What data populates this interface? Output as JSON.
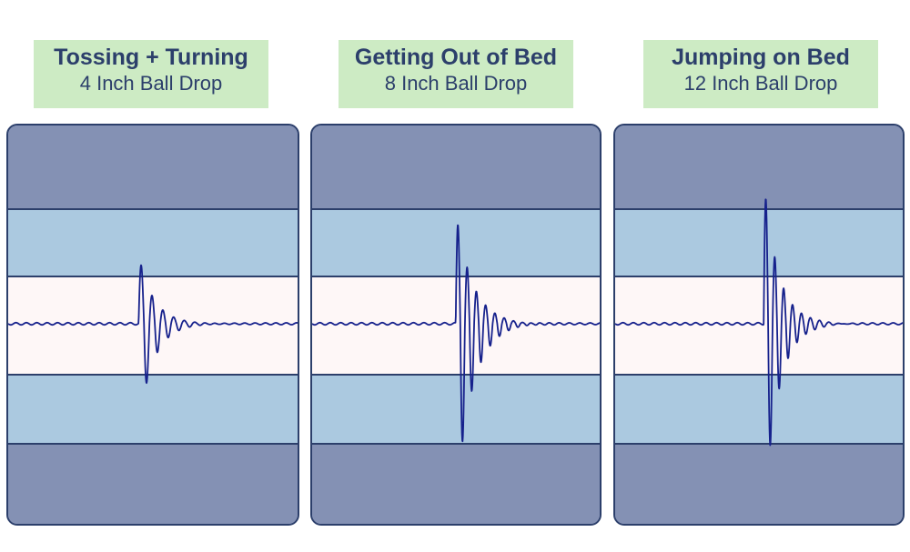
{
  "chart_data": [
    {
      "type": "line",
      "title": "Tossing + Turning",
      "subtitle": "4 Inch Ball Drop",
      "series": [
        {
          "color": "#16218c"
        }
      ],
      "waveform": {
        "onset": 0.445,
        "pos_amplitude": 0.48,
        "neg_amplitude": 0.7,
        "decay": 11,
        "cycles": 15
      }
    },
    {
      "type": "line",
      "title": "Getting Out of Bed",
      "subtitle": "8 Inch Ball Drop",
      "series": [
        {
          "color": "#16218c"
        }
      ],
      "waveform": {
        "onset": 0.493,
        "pos_amplitude": 0.78,
        "neg_amplitude": 1.23,
        "decay": 9,
        "cycles": 16
      }
    },
    {
      "type": "line",
      "title": "Jumping on Bed",
      "subtitle": "12 Inch Ball Drop",
      "series": [
        {
          "color": "#16218c"
        }
      ],
      "waveform": {
        "onset": 0.51,
        "pos_amplitude": 1.0,
        "neg_amplitude": 1.33,
        "decay": 10,
        "cycles": 16
      }
    }
  ],
  "colors": {
    "outer_band": "#8491b4",
    "middle_band": "#abc9e0",
    "center_band": "#fef7f7",
    "band_border": "#2c3f6b",
    "label_bg": "#cdebc4",
    "text": "#2c3f6b"
  }
}
